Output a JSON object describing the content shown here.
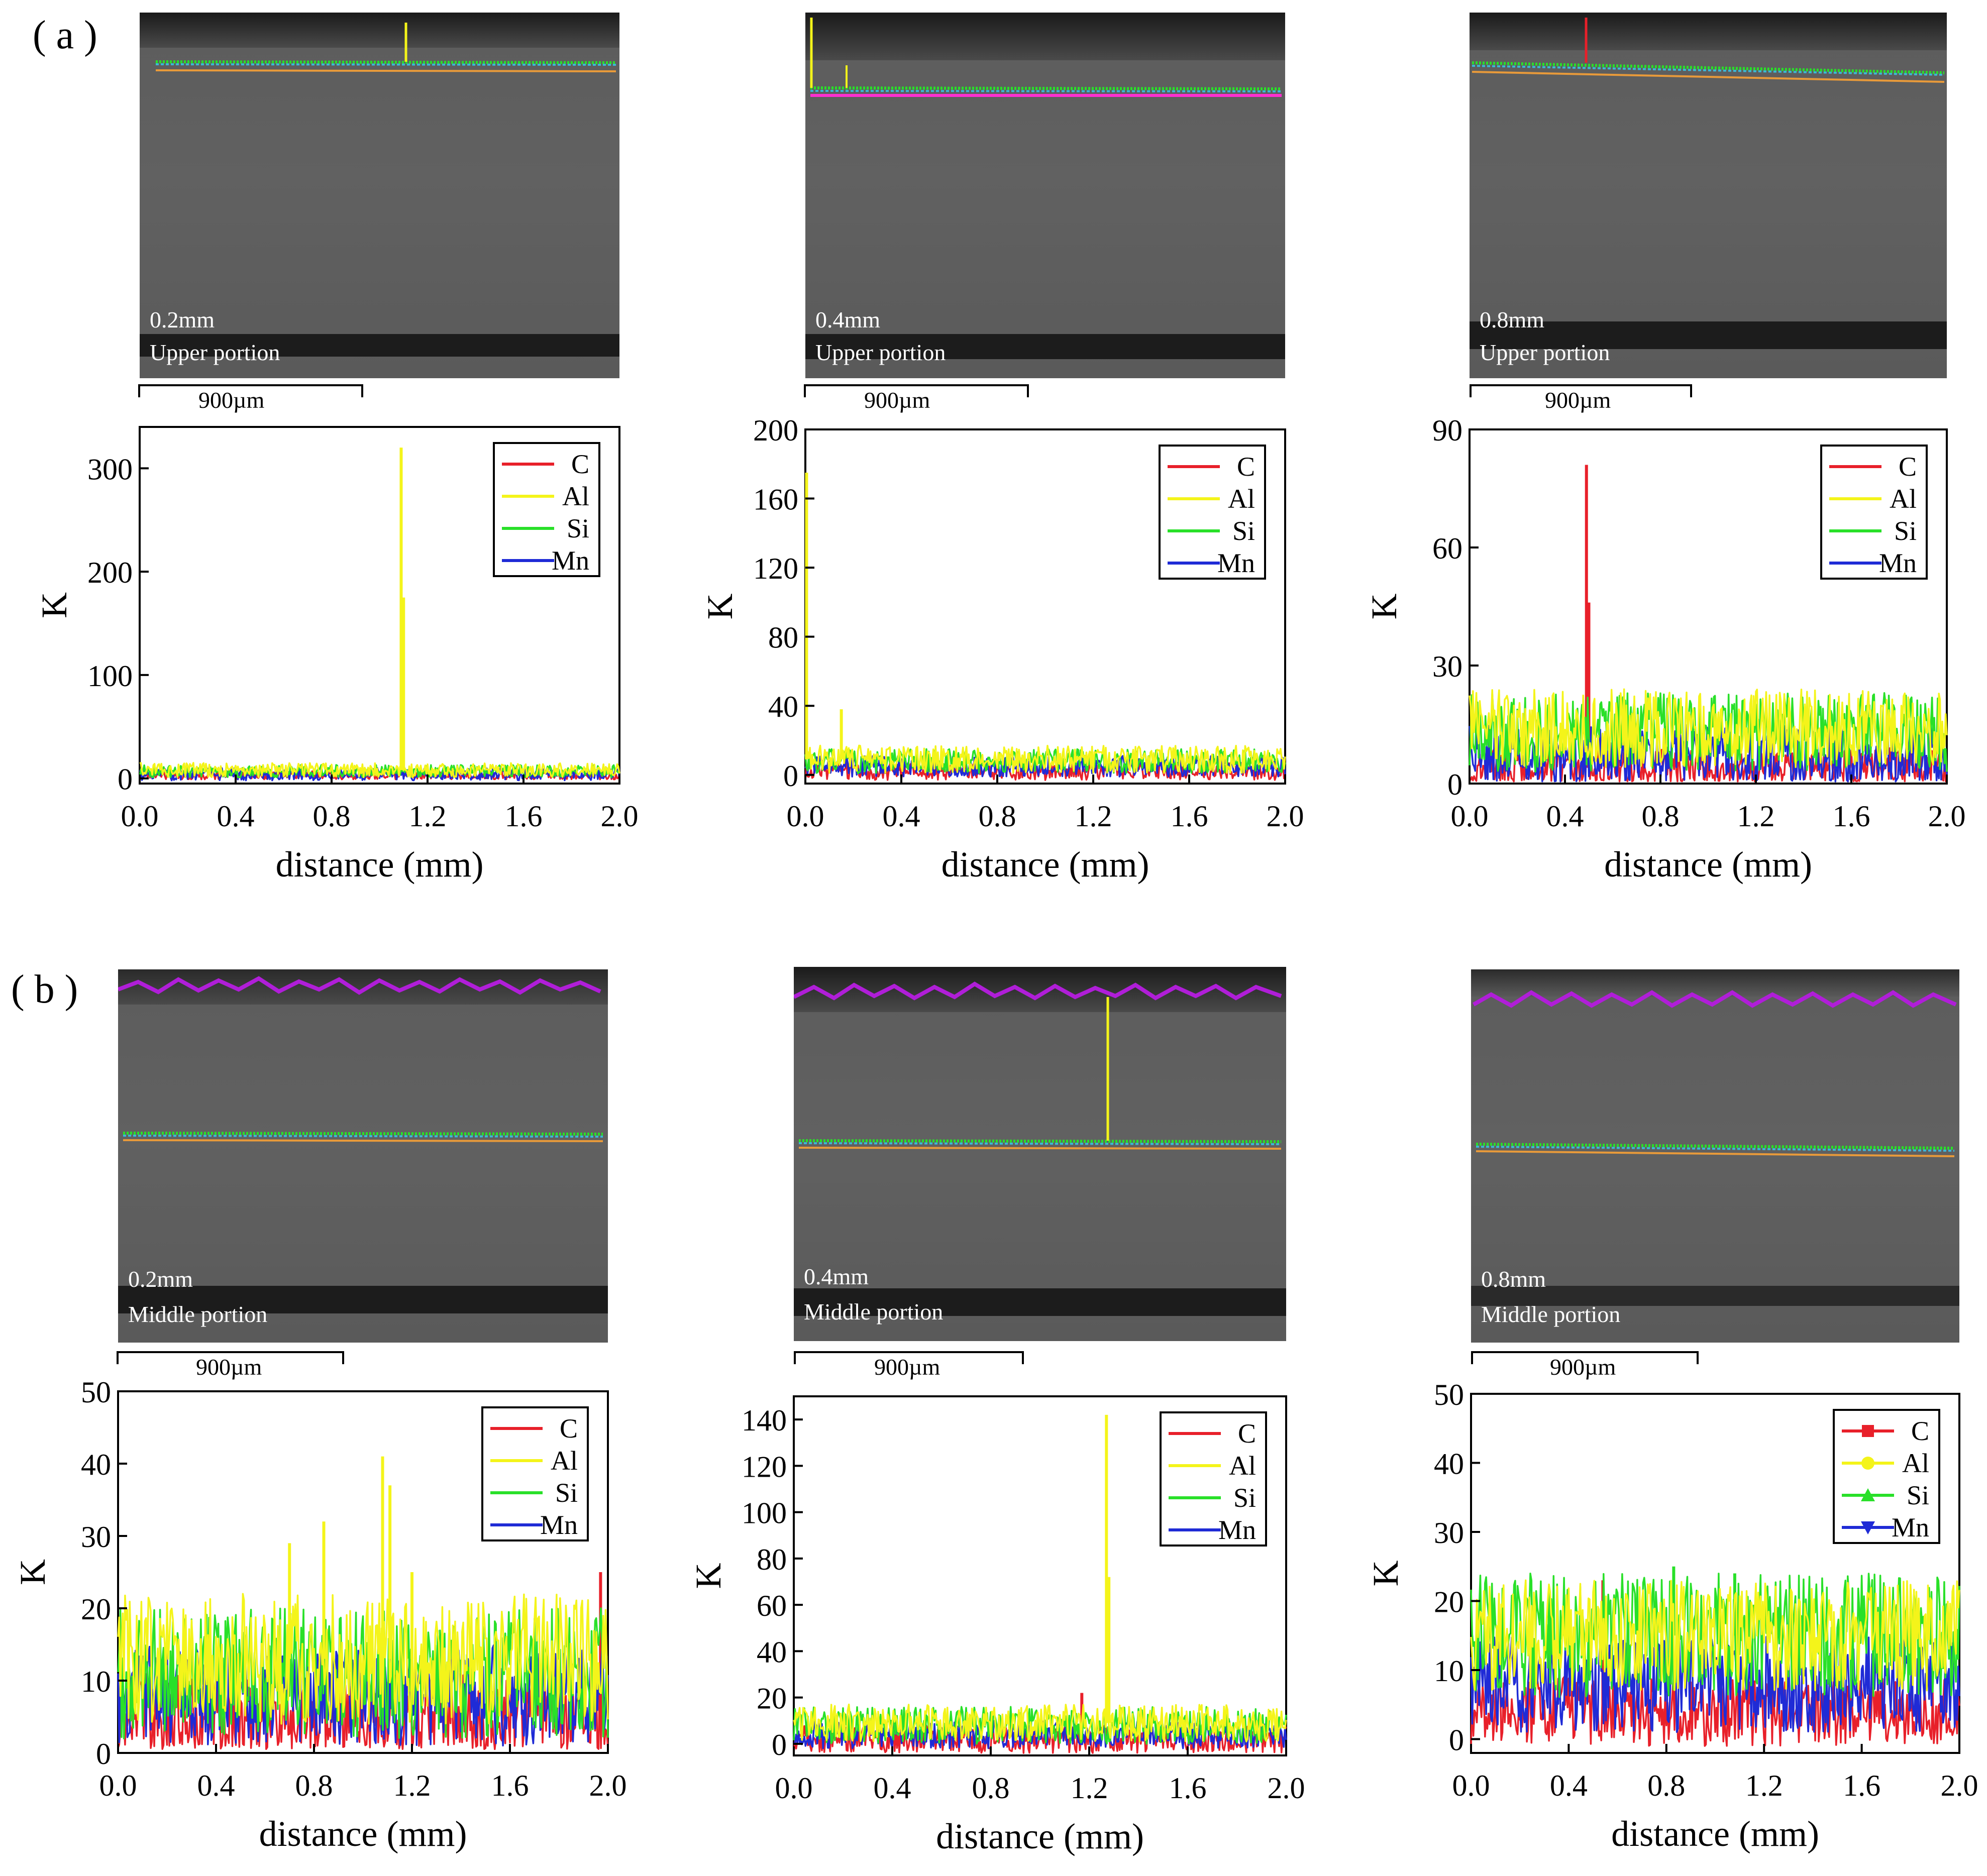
{
  "figure": {
    "panel_labels": [
      "( a )",
      "( b )"
    ]
  },
  "micrographs": [
    {
      "id": "a1",
      "thickness": "0.2mm",
      "portion": "Upper portion",
      "scale_label": "900µm"
    },
    {
      "id": "a2",
      "thickness": "0.4mm",
      "portion": "Upper portion",
      "scale_label": "900µm"
    },
    {
      "id": "a3",
      "thickness": "0.8mm",
      "portion": "Upper portion",
      "scale_label": "900µm"
    },
    {
      "id": "b1",
      "thickness": "0.2mm",
      "portion": "Middle portion",
      "scale_label": "900µm"
    },
    {
      "id": "b2",
      "thickness": "0.4mm",
      "portion": "Middle portion",
      "scale_label": "900µm"
    },
    {
      "id": "b3",
      "thickness": "0.8mm",
      "portion": "Middle portion",
      "scale_label": "900µm"
    }
  ],
  "colors": {
    "C": "#e8202a",
    "Al": "#f4f41a",
    "Si": "#29e029",
    "Mn": "#1f2bd6",
    "micro_line_orange": "#e89a3a",
    "micro_line_magenta": "#ff2fd0",
    "micro_trace_purple": "#b01ed8"
  },
  "chart_data": [
    {
      "id": "a1",
      "type": "line",
      "xlabel": "distance (mm)",
      "ylabel": "K",
      "xlim": [
        0,
        2.0
      ],
      "ylim": [
        -5,
        340
      ],
      "xticks": [
        "0.0",
        "0.4",
        "0.8",
        "1.2",
        "1.6",
        "2.0"
      ],
      "yticks": [
        0,
        100,
        200,
        300
      ],
      "legend_style": "line",
      "legend": [
        "C",
        "Al",
        "Si",
        "Mn"
      ],
      "series": [
        {
          "name": "C",
          "baseline": 3,
          "amplitude": 4,
          "spikes": []
        },
        {
          "name": "Al",
          "baseline": 8,
          "amplitude": 7,
          "spikes": [
            {
              "x": 1.09,
              "y": 320
            },
            {
              "x": 1.1,
              "y": 175
            }
          ]
        },
        {
          "name": "Si",
          "baseline": 7,
          "amplitude": 6,
          "spikes": []
        },
        {
          "name": "Mn",
          "baseline": 4,
          "amplitude": 6,
          "spikes": []
        }
      ]
    },
    {
      "id": "a2",
      "type": "line",
      "xlabel": "distance (mm)",
      "ylabel": "K",
      "xlim": [
        0,
        2.0
      ],
      "ylim": [
        -5,
        200
      ],
      "xticks": [
        "0.0",
        "0.4",
        "0.8",
        "1.2",
        "1.6",
        "2.0"
      ],
      "yticks": [
        0,
        40,
        80,
        120,
        160,
        200
      ],
      "legend_style": "line",
      "legend": [
        "C",
        "Al",
        "Si",
        "Mn"
      ],
      "series": [
        {
          "name": "C",
          "baseline": 2,
          "amplitude": 5,
          "spikes": []
        },
        {
          "name": "Al",
          "baseline": 9,
          "amplitude": 8,
          "spikes": [
            {
              "x": 0.005,
              "y": 175
            },
            {
              "x": 0.15,
              "y": 38
            }
          ]
        },
        {
          "name": "Si",
          "baseline": 8,
          "amplitude": 7,
          "spikes": []
        },
        {
          "name": "Mn",
          "baseline": 5,
          "amplitude": 6,
          "spikes": []
        }
      ]
    },
    {
      "id": "a3",
      "type": "line",
      "xlabel": "distance (mm)",
      "ylabel": "K",
      "xlim": [
        0,
        2.0
      ],
      "ylim": [
        0,
        90
      ],
      "xticks": [
        "0.0",
        "0.4",
        "0.8",
        "1.2",
        "1.6",
        "2.0"
      ],
      "yticks": [
        0,
        30,
        60,
        90
      ],
      "legend_style": "line",
      "legend": [
        "C",
        "Al",
        "Si",
        "Mn"
      ],
      "series": [
        {
          "name": "C",
          "baseline": 4,
          "amplitude": 5,
          "spikes": [
            {
              "x": 0.49,
              "y": 81
            },
            {
              "x": 0.5,
              "y": 46
            }
          ]
        },
        {
          "name": "Al",
          "baseline": 14,
          "amplitude": 10,
          "spikes": []
        },
        {
          "name": "Si",
          "baseline": 13,
          "amplitude": 10,
          "spikes": []
        },
        {
          "name": "Mn",
          "baseline": 7,
          "amplitude": 8,
          "spikes": []
        }
      ]
    },
    {
      "id": "b1",
      "type": "line",
      "xlabel": "distance (mm)",
      "ylabel": "K",
      "xlim": [
        0,
        2.0
      ],
      "ylim": [
        0,
        50
      ],
      "xticks": [
        "0.0",
        "0.4",
        "0.8",
        "1.2",
        "1.6",
        "2.0"
      ],
      "yticks": [
        0,
        10,
        20,
        30,
        40,
        50
      ],
      "legend_style": "line",
      "legend": [
        "C",
        "Al",
        "Si",
        "Mn"
      ],
      "series": [
        {
          "name": "C",
          "baseline": 5,
          "amplitude": 6,
          "spikes": [
            {
              "x": 1.97,
              "y": 25
            }
          ]
        },
        {
          "name": "Al",
          "baseline": 13,
          "amplitude": 9,
          "spikes": [
            {
              "x": 0.7,
              "y": 29
            },
            {
              "x": 0.84,
              "y": 32
            },
            {
              "x": 1.08,
              "y": 41
            },
            {
              "x": 1.11,
              "y": 37
            },
            {
              "x": 1.2,
              "y": 25
            }
          ]
        },
        {
          "name": "Si",
          "baseline": 11,
          "amplitude": 9,
          "spikes": []
        },
        {
          "name": "Mn",
          "baseline": 8,
          "amplitude": 7,
          "spikes": []
        }
      ]
    },
    {
      "id": "b2",
      "type": "line",
      "xlabel": "distance (mm)",
      "ylabel": "K",
      "xlim": [
        0,
        2.0
      ],
      "ylim": [
        -5,
        150
      ],
      "xticks": [
        "0.0",
        "0.4",
        "0.8",
        "1.2",
        "1.6",
        "2.0"
      ],
      "yticks": [
        0,
        20,
        40,
        60,
        80,
        100,
        120,
        140
      ],
      "legend_style": "line",
      "legend": [
        "C",
        "Al",
        "Si",
        "Mn"
      ],
      "series": [
        {
          "name": "C",
          "baseline": 2,
          "amplitude": 6,
          "spikes": [
            {
              "x": 1.17,
              "y": 22
            }
          ]
        },
        {
          "name": "Al",
          "baseline": 9,
          "amplitude": 8,
          "spikes": [
            {
              "x": 1.27,
              "y": 142
            },
            {
              "x": 1.28,
              "y": 72
            }
          ]
        },
        {
          "name": "Si",
          "baseline": 8,
          "amplitude": 8,
          "spikes": []
        },
        {
          "name": "Mn",
          "baseline": 4,
          "amplitude": 6,
          "spikes": []
        }
      ]
    },
    {
      "id": "b3",
      "type": "line",
      "xlabel": "distance (mm)",
      "ylabel": "K",
      "xlim": [
        0,
        2.0
      ],
      "ylim": [
        -2,
        50
      ],
      "xticks": [
        "0.0",
        "0.4",
        "0.8",
        "1.2",
        "1.6",
        "2.0"
      ],
      "yticks": [
        0,
        10,
        20,
        30,
        40,
        50
      ],
      "legend_style": "marker",
      "legend": [
        "C",
        "Al",
        "Si",
        "Mn"
      ],
      "series": [
        {
          "name": "C",
          "baseline": 4,
          "amplitude": 5,
          "spikes": [
            {
              "x": 0.54,
              "y": 23
            }
          ]
        },
        {
          "name": "Al",
          "baseline": 15,
          "amplitude": 8,
          "spikes": []
        },
        {
          "name": "Si",
          "baseline": 15,
          "amplitude": 9,
          "spikes": [
            {
              "x": 0.83,
              "y": 25
            },
            {
              "x": 1.08,
              "y": 24
            }
          ]
        },
        {
          "name": "Mn",
          "baseline": 8,
          "amplitude": 7,
          "spikes": []
        }
      ]
    }
  ]
}
